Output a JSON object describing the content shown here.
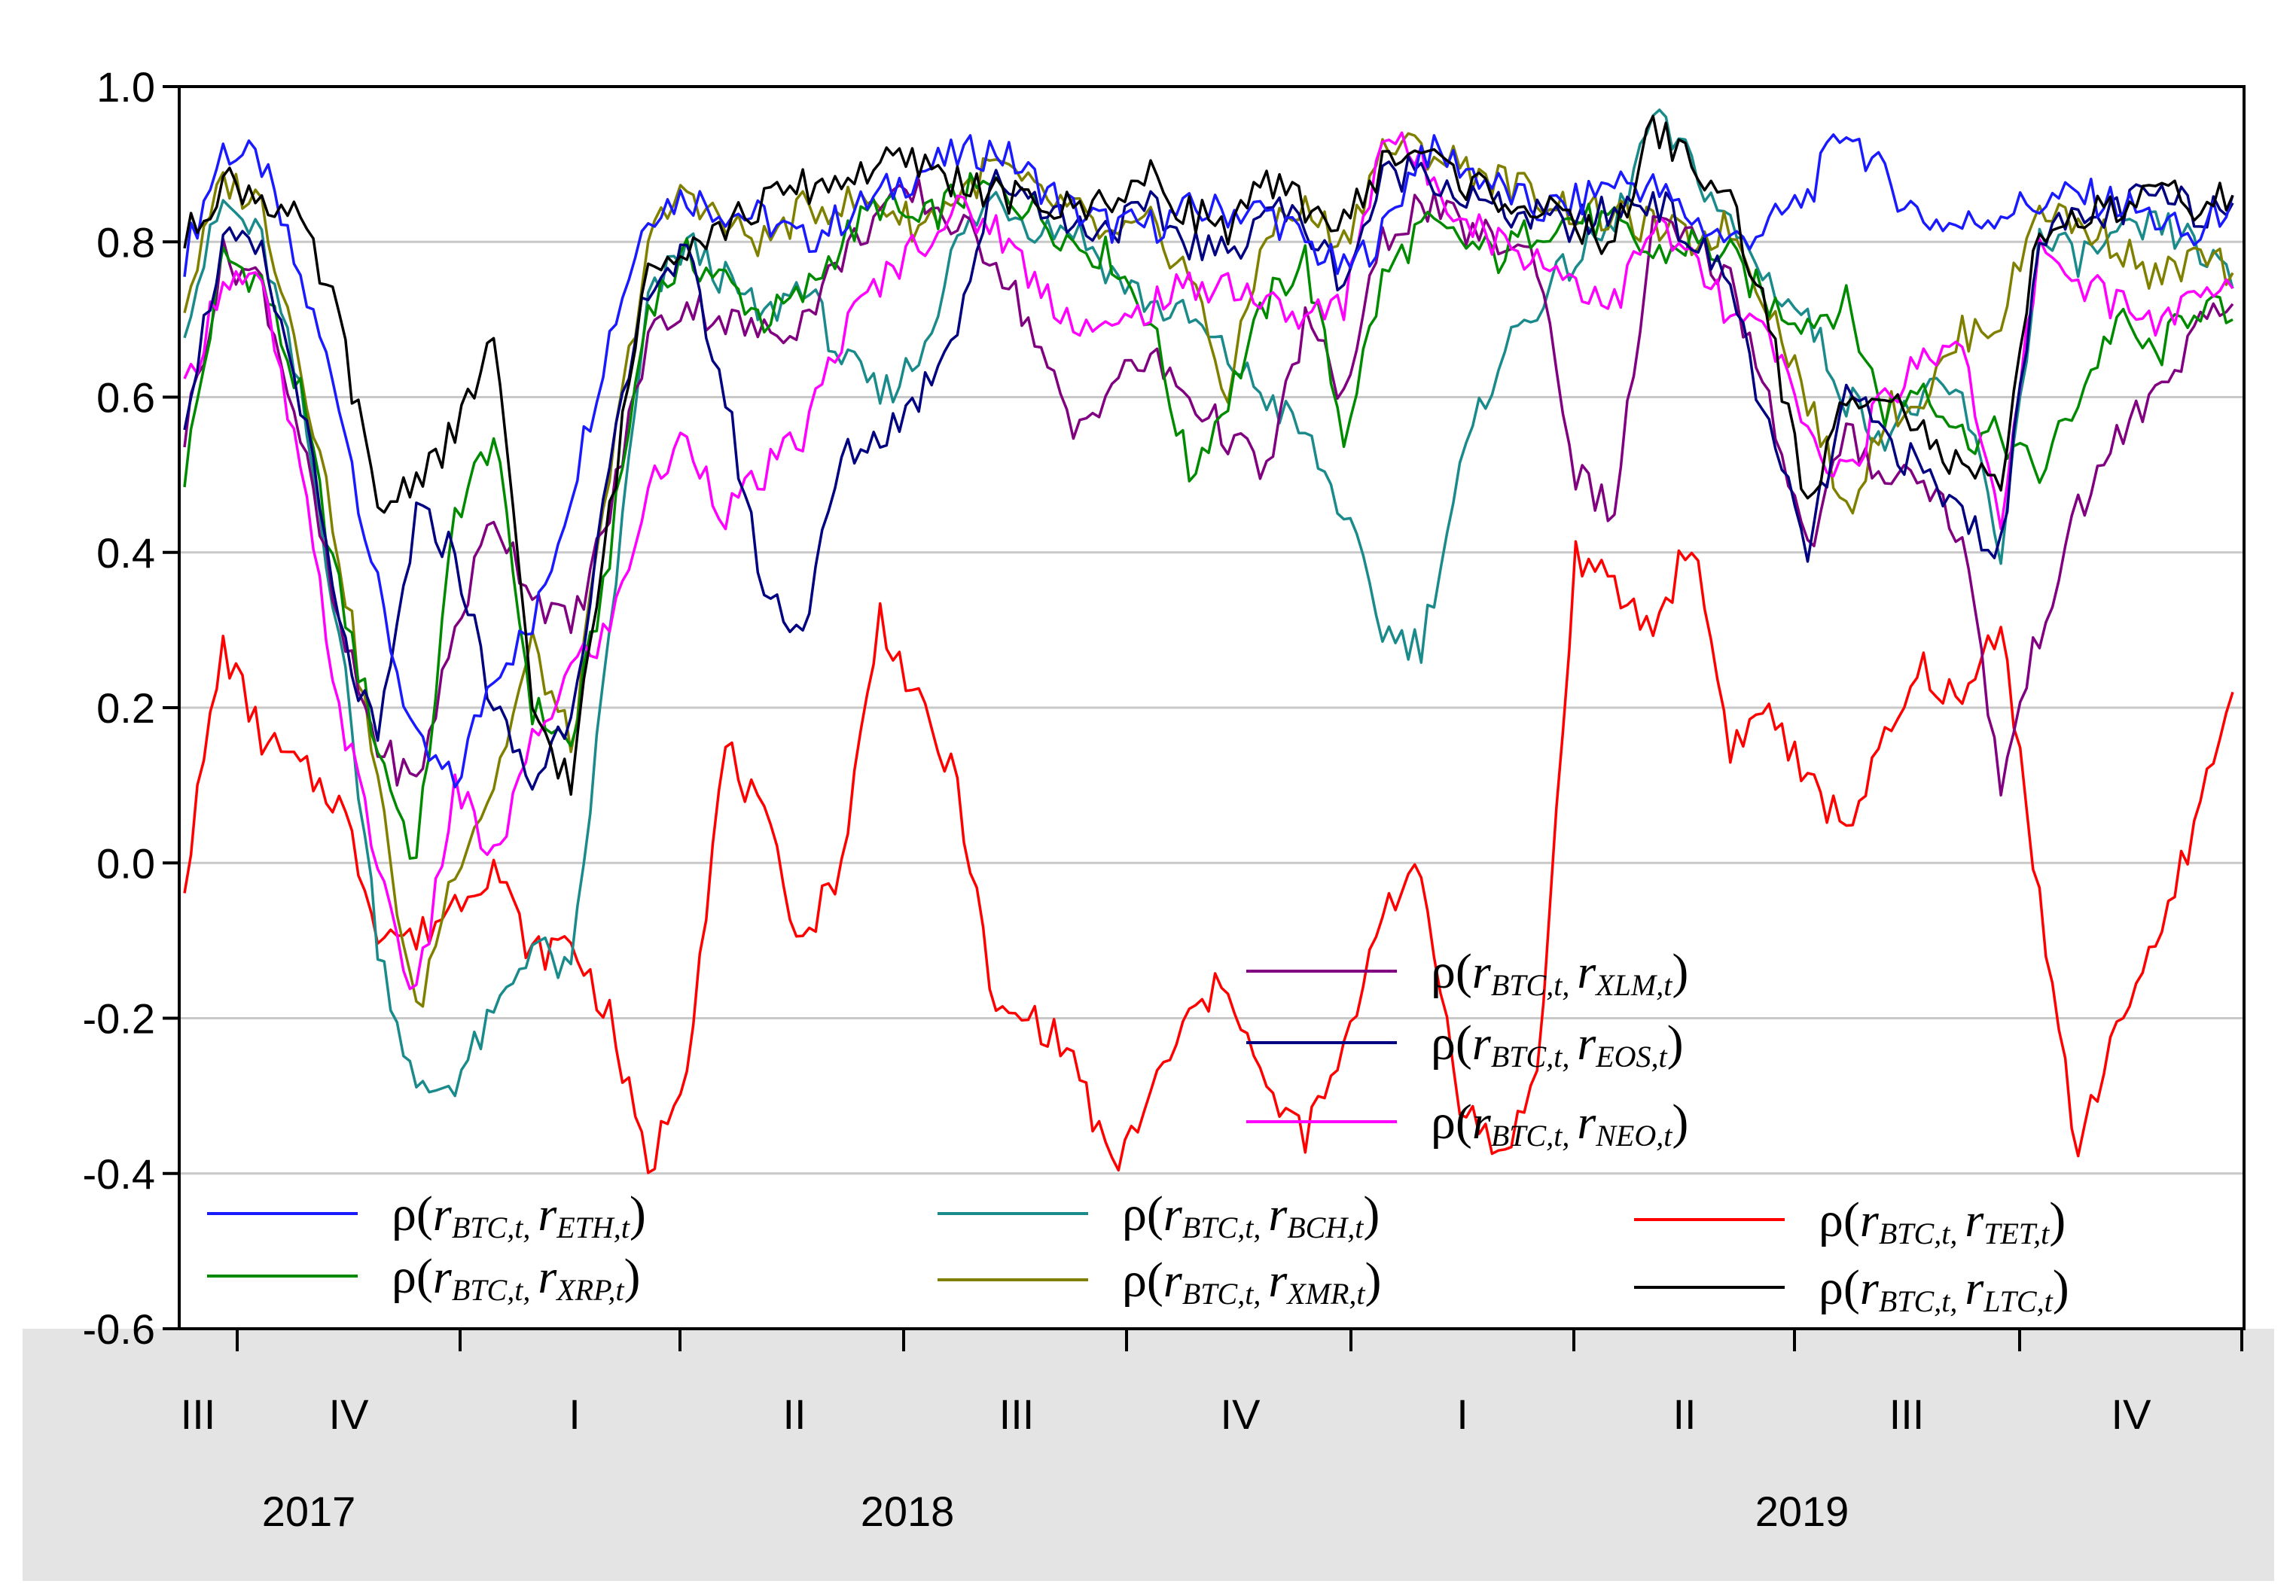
{
  "chart_data": {
    "type": "line",
    "title": "",
    "xlabel": "",
    "ylabel": "",
    "ylim": [
      -0.6,
      1.0
    ],
    "yticks": [
      "1.0",
      "0.8",
      "0.6",
      "0.4",
      "0.2",
      "0.0",
      "-0.2",
      "-0.4",
      "-0.6"
    ],
    "quarters": [
      "III",
      "IV",
      "I",
      "II",
      "III",
      "IV",
      "I",
      "II",
      "III",
      "IV"
    ],
    "years": [
      "2017",
      "2018",
      "2019"
    ],
    "grid": true,
    "series": [
      {
        "name": "ρ(r_BTC,t, r_ETH,t)",
        "legend_rho": "ρ(",
        "legend_r1": "r",
        "legend_s1": "BTC,t",
        "legend_r2": "r",
        "legend_s2": "ETH,t",
        "legend_close": ")",
        "color": "#1a1aff",
        "values": [
          0.78,
          0.92,
          0.9,
          0.75,
          0.6,
          0.35,
          0.15,
          0.1,
          0.25,
          0.3,
          0.48,
          0.68,
          0.84,
          0.86,
          0.84,
          0.83,
          0.8,
          0.83,
          0.86,
          0.89,
          0.91,
          0.92,
          0.88,
          0.84,
          0.82,
          0.82,
          0.84,
          0.84,
          0.84,
          0.8,
          0.76,
          0.81,
          0.92,
          0.9,
          0.87,
          0.84,
          0.85,
          0.88,
          0.87,
          0.83,
          0.8,
          0.82,
          0.86,
          0.95,
          0.88,
          0.83,
          0.82,
          0.84,
          0.85,
          0.86,
          0.85,
          0.83,
          0.8,
          0.86
        ]
      },
      {
        "name": "ρ(r_BTC,t, r_XRP,t)",
        "legend_rho": "ρ(",
        "legend_r1": "r",
        "legend_s1": "BTC,t",
        "legend_r2": "r",
        "legend_s2": "XRP,t",
        "legend_close": ")",
        "color": "#008a00",
        "values": [
          0.5,
          0.78,
          0.75,
          0.6,
          0.35,
          0.15,
          0.0,
          0.45,
          0.55,
          0.2,
          0.15,
          0.4,
          0.72,
          0.78,
          0.75,
          0.7,
          0.73,
          0.8,
          0.85,
          0.82,
          0.86,
          0.87,
          0.84,
          0.8,
          0.78,
          0.7,
          0.5,
          0.6,
          0.72,
          0.78,
          0.55,
          0.75,
          0.82,
          0.8,
          0.78,
          0.82,
          0.83,
          0.82,
          0.78,
          0.8,
          0.78,
          0.72,
          0.7,
          0.72,
          0.58,
          0.62,
          0.55,
          0.55,
          0.5,
          0.6,
          0.7,
          0.65,
          0.72,
          0.7
        ]
      },
      {
        "name": "ρ(r_BTC,t, r_BCH,t)",
        "legend_rho": "ρ(",
        "legend_r1": "r",
        "legend_s1": "BTC,t",
        "legend_r2": "r",
        "legend_s2": "BCH,t",
        "legend_close": ")",
        "color": "#1a8a8a",
        "values": [
          0.7,
          0.85,
          0.8,
          0.6,
          0.3,
          -0.1,
          -0.3,
          -0.28,
          -0.2,
          -0.1,
          -0.15,
          0.3,
          0.72,
          0.8,
          0.75,
          0.7,
          0.75,
          0.65,
          0.6,
          0.65,
          0.8,
          0.86,
          0.82,
          0.82,
          0.76,
          0.72,
          0.7,
          0.65,
          0.6,
          0.55,
          0.45,
          0.3,
          0.28,
          0.5,
          0.65,
          0.72,
          0.78,
          0.82,
          0.96,
          0.9,
          0.82,
          0.75,
          0.7,
          0.6,
          0.55,
          0.6,
          0.6,
          0.4,
          0.8,
          0.78,
          0.8,
          0.82,
          0.8,
          0.74
        ]
      },
      {
        "name": "ρ(r_BTC,t, r_XMR,t)",
        "legend_rho": "ρ(",
        "legend_r1": "r",
        "legend_s1": "BTC,t",
        "legend_r2": "r",
        "legend_s2": "XMR,t",
        "legend_close": ")",
        "color": "#808000",
        "values": [
          0.72,
          0.88,
          0.85,
          0.65,
          0.4,
          0.1,
          -0.2,
          0.0,
          0.1,
          0.28,
          0.15,
          0.5,
          0.8,
          0.87,
          0.82,
          0.8,
          0.84,
          0.85,
          0.85,
          0.82,
          0.86,
          0.9,
          0.86,
          0.84,
          0.8,
          0.82,
          0.76,
          0.6,
          0.82,
          0.84,
          0.8,
          0.92,
          0.92,
          0.9,
          0.88,
          0.86,
          0.84,
          0.83,
          0.82,
          0.8,
          0.82,
          0.72,
          0.6,
          0.45,
          0.58,
          0.6,
          0.68,
          0.7,
          0.85,
          0.82,
          0.8,
          0.75,
          0.78,
          0.76
        ]
      },
      {
        "name": "ρ(r_BTC,t, r_XLM,t)",
        "legend_rho": "ρ(",
        "legend_r1": "r",
        "legend_s1": "BTC,t",
        "legend_r2": "r",
        "legend_s2": "XLM,t",
        "legend_close": ")",
        "color": "#800080",
        "values": [
          0.55,
          0.78,
          0.75,
          0.55,
          0.3,
          0.15,
          0.1,
          0.3,
          0.45,
          0.35,
          0.3,
          0.45,
          0.68,
          0.72,
          0.7,
          0.68,
          0.7,
          0.78,
          0.84,
          0.86,
          0.82,
          0.78,
          0.68,
          0.55,
          0.62,
          0.65,
          0.6,
          0.55,
          0.5,
          0.7,
          0.6,
          0.8,
          0.85,
          0.82,
          0.8,
          0.78,
          0.5,
          0.45,
          0.82,
          0.8,
          0.75,
          0.6,
          0.4,
          0.55,
          0.5,
          0.5,
          0.42,
          0.1,
          0.3,
          0.45,
          0.55,
          0.6,
          0.68,
          0.72
        ]
      },
      {
        "name": "ρ(r_BTC,t, r_EOS,t)",
        "legend_rho": "ρ(",
        "legend_r1": "r",
        "legend_s1": "BTC,t",
        "legend_r2": "r",
        "legend_s2": "EOS,t",
        "legend_close": ")",
        "color": "#000080",
        "values": [
          0.58,
          0.8,
          0.78,
          0.6,
          0.3,
          0.15,
          0.45,
          0.4,
          0.2,
          0.1,
          0.2,
          0.5,
          0.75,
          0.78,
          0.6,
          0.35,
          0.3,
          0.52,
          0.55,
          0.6,
          0.7,
          0.88,
          0.86,
          0.82,
          0.82,
          0.84,
          0.8,
          0.78,
          0.85,
          0.82,
          0.75,
          0.88,
          0.9,
          0.86,
          0.84,
          0.83,
          0.82,
          0.84,
          0.86,
          0.8,
          0.75,
          0.55,
          0.4,
          0.6,
          0.55,
          0.5,
          0.45,
          0.4,
          0.82,
          0.82,
          0.84,
          0.86,
          0.84,
          0.85
        ]
      },
      {
        "name": "ρ(r_BTC,t, r_NEO,t)",
        "legend_rho": "ρ(",
        "legend_r1": "r",
        "legend_s1": "BTC,t",
        "legend_r2": "r",
        "legend_s2": "NEO,t",
        "legend_close": ")",
        "color": "#ff00ff",
        "values": [
          0.6,
          0.76,
          0.74,
          0.5,
          0.2,
          0.0,
          -0.18,
          0.1,
          0.0,
          0.15,
          0.25,
          0.3,
          0.48,
          0.55,
          0.45,
          0.5,
          0.55,
          0.68,
          0.75,
          0.8,
          0.84,
          0.82,
          0.75,
          0.7,
          0.68,
          0.72,
          0.74,
          0.75,
          0.72,
          0.7,
          0.72,
          0.94,
          0.9,
          0.84,
          0.8,
          0.78,
          0.75,
          0.72,
          0.82,
          0.78,
          0.7,
          0.68,
          0.55,
          0.5,
          0.6,
          0.65,
          0.68,
          0.42,
          0.8,
          0.75,
          0.72,
          0.7,
          0.72,
          0.74
        ]
      },
      {
        "name": "ρ(r_BTC,t, r_TET,t)",
        "legend_rho": "ρ(",
        "legend_r1": "r",
        "legend_s1": "BTC,t",
        "legend_r2": "r",
        "legend_s2": "TET,t",
        "legend_close": ")",
        "color": "#ff0000",
        "values": [
          -0.02,
          0.28,
          0.16,
          0.12,
          0.08,
          -0.08,
          -0.1,
          -0.05,
          0.0,
          -0.12,
          -0.1,
          -0.2,
          -0.4,
          -0.25,
          0.15,
          0.05,
          -0.1,
          0.0,
          0.32,
          0.2,
          0.1,
          -0.2,
          -0.2,
          -0.25,
          -0.4,
          -0.3,
          -0.2,
          -0.15,
          -0.3,
          -0.35,
          -0.25,
          -0.05,
          -0.02,
          -0.3,
          -0.38,
          -0.28,
          0.4,
          0.35,
          0.3,
          0.42,
          0.15,
          0.2,
          0.1,
          0.05,
          0.15,
          0.25,
          0.2,
          0.32,
          -0.05,
          -0.38,
          -0.2,
          -0.12,
          0.05,
          0.22
        ]
      },
      {
        "name": "ρ(r_BTC,t, r_LTC,t)",
        "legend_rho": "ρ(",
        "legend_r1": "r",
        "legend_s1": "BTC,t",
        "legend_r2": "r",
        "legend_s2": "LTC,t",
        "legend_close": ")",
        "color": "#000000",
        "values": [
          0.8,
          0.88,
          0.86,
          0.82,
          0.7,
          0.45,
          0.5,
          0.55,
          0.68,
          0.2,
          0.1,
          0.45,
          0.78,
          0.8,
          0.82,
          0.85,
          0.87,
          0.88,
          0.9,
          0.9,
          0.88,
          0.86,
          0.85,
          0.84,
          0.86,
          0.88,
          0.84,
          0.82,
          0.87,
          0.85,
          0.82,
          0.9,
          0.92,
          0.88,
          0.86,
          0.84,
          0.82,
          0.8,
          0.95,
          0.9,
          0.85,
          0.7,
          0.45,
          0.6,
          0.62,
          0.55,
          0.5,
          0.48,
          0.82,
          0.83,
          0.84,
          0.86,
          0.85,
          0.86
        ]
      }
    ]
  }
}
